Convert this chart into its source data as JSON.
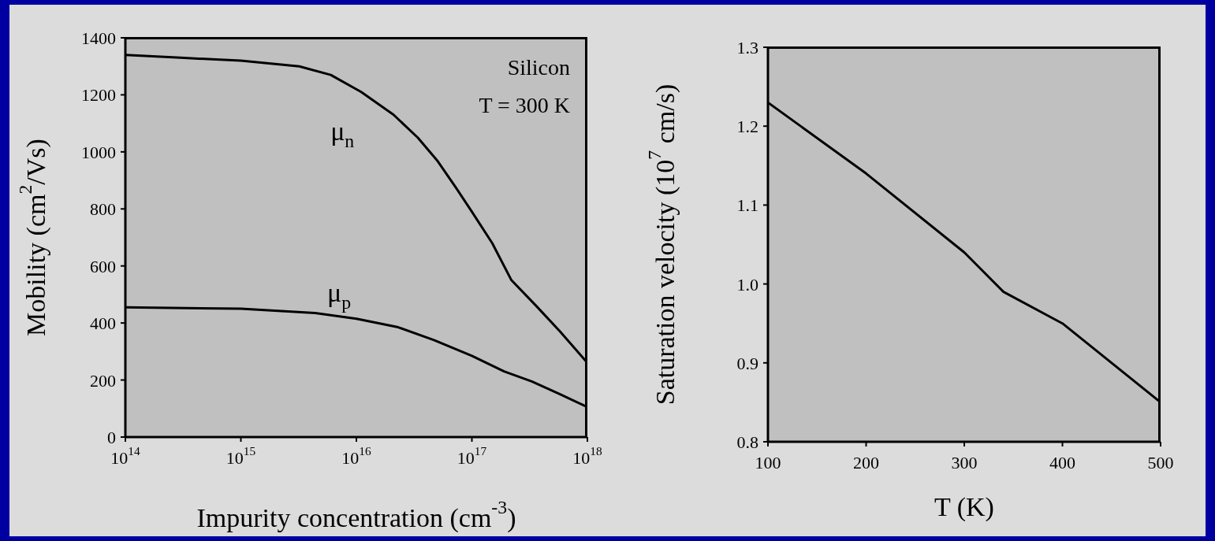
{
  "chart_data": [
    {
      "type": "line",
      "xlabel": "Impurity concentration (cm$^{-3}$)",
      "ylabel": "Mobility (cm$^{2}$/Vs)",
      "log": "x",
      "xlim": [
        100000000000000.0,
        1e+18
      ],
      "xticks": [
        {
          "value": 100000000000000.0,
          "label": "10$^{14}$"
        },
        {
          "value": 1000000000000000.0,
          "label": "10$^{15}$"
        },
        {
          "value": 1e+16,
          "label": "10$^{16}$"
        },
        {
          "value": 1e+17,
          "label": "10$^{17}$"
        },
        {
          "value": 1e+18,
          "label": "10$^{18}$"
        }
      ],
      "ylim": [
        0,
        1400
      ],
      "yticks": [
        0,
        200,
        400,
        600,
        800,
        1000,
        1200,
        1400
      ],
      "annotations": [
        "Silicon",
        "T = 300 K"
      ],
      "series": [
        {
          "name": "μ$_{n}$",
          "color": "#000000",
          "x": [
            100000000000000.0,
            300000000000000.0,
            1000000000000000.0,
            3200000000000000.0,
            6000000000000000.0,
            1.1e+16,
            2.1e+16,
            3.4e+16,
            5e+16,
            7.4e+16,
            1e+17,
            1.5e+17,
            2.2e+17,
            3.6e+17,
            5.8e+17,
            1e+18
          ],
          "values": [
            1340,
            1330,
            1320,
            1300,
            1270,
            1210,
            1130,
            1050,
            970,
            870,
            790,
            680,
            550,
            460,
            370,
            260
          ]
        },
        {
          "name": "μ$_{p}$",
          "color": "#000000",
          "x": [
            100000000000000.0,
            1000000000000000.0,
            4400000000000000.0,
            1e+16,
            2.3e+16,
            4.7e+16,
            1e+17,
            1.9e+17,
            3.3e+17,
            5.8e+17,
            1e+18
          ],
          "values": [
            455,
            450,
            435,
            415,
            385,
            340,
            285,
            230,
            195,
            150,
            105
          ]
        }
      ]
    },
    {
      "type": "line",
      "xlabel": "T (K)",
      "ylabel": "Saturation velocity (10$^{7}$ cm/s)",
      "xlim": [
        100,
        500
      ],
      "xticks": [
        100,
        200,
        300,
        400,
        500
      ],
      "ylim": [
        0.8,
        1.3
      ],
      "yticks": [
        0.8,
        0.9,
        {
          "value": 1.0,
          "label": "1.0"
        },
        1.1,
        1.2,
        1.3
      ],
      "color": "#000000",
      "x": [
        100,
        200,
        300,
        340,
        400,
        500
      ],
      "values": [
        1.23,
        1.14,
        1.04,
        0.99,
        0.95,
        0.85
      ]
    }
  ]
}
